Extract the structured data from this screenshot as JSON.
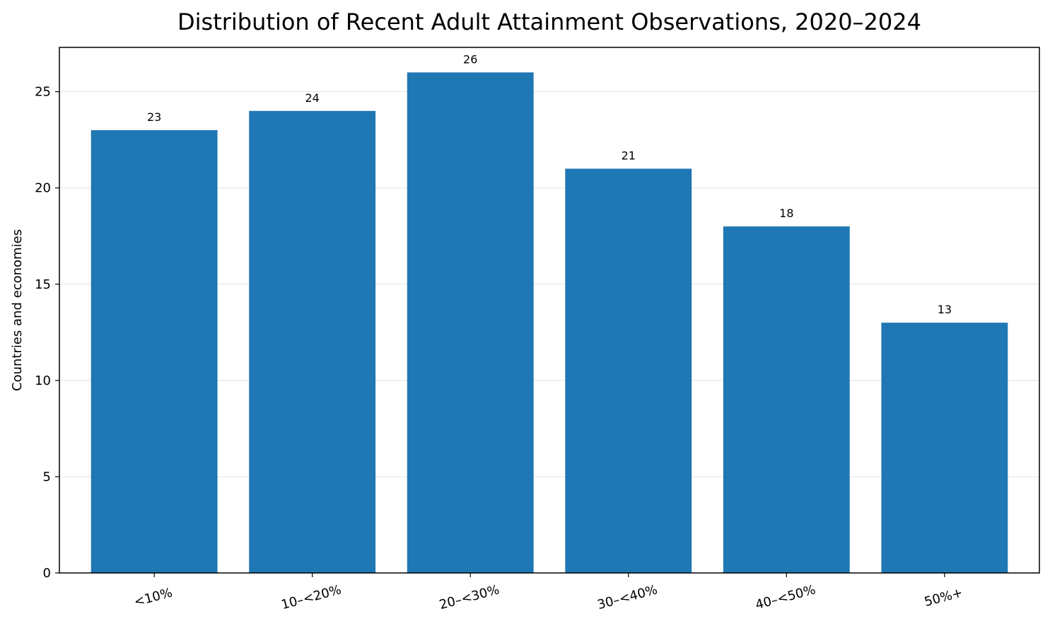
{
  "chart_data": {
    "type": "bar",
    "title": "Distribution of Recent Adult Attainment Observations, 2020–2024",
    "xlabel": "",
    "ylabel": "Countries and economies",
    "categories": [
      "<10%",
      "10–<20%",
      "20–<30%",
      "30–<40%",
      "40–<50%",
      "50%+"
    ],
    "values": [
      23,
      24,
      26,
      21,
      18,
      13
    ],
    "ylim": [
      0,
      27.3
    ],
    "yticks": [
      0,
      5,
      10,
      15,
      20,
      25
    ],
    "grid": "y",
    "legend": "none",
    "bar_color": "#1f77b4",
    "data_labels": true
  }
}
